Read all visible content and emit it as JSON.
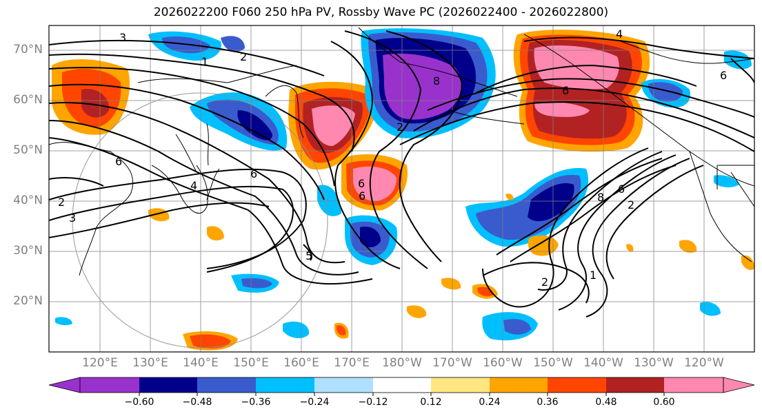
{
  "title": "2026022200 F060 250 hPa PV, Rossby Wave PC (2026022400 - 2026022800)",
  "lat_labels": [
    "70°N",
    "60°N",
    "50°N",
    "40°N",
    "30°N",
    "20°N"
  ],
  "lon_labels": [
    "120°E",
    "130°E",
    "140°E",
    "150°E",
    "160°E",
    "170°E",
    "180°W",
    "170°W",
    "160°W",
    "150°W",
    "140°W",
    "130°W",
    "120°W"
  ],
  "contour_labels": [
    "3",
    "1",
    "2",
    "2",
    "6",
    "4",
    "2",
    "3",
    "6",
    "5",
    "8",
    "6",
    "6",
    "6",
    "2",
    "1",
    "8",
    "6",
    "2",
    "4",
    "6"
  ],
  "colorbar": {
    "ticks": [
      "−0.60",
      "−0.48",
      "−0.36",
      "−0.24",
      "−0.12",
      "0.12",
      "0.24",
      "0.36",
      "0.48",
      "0.60"
    ],
    "colors": [
      "#9932CC",
      "#00008B",
      "#3A5BCD",
      "#00BFFF",
      "#B0E0FF",
      "#FFFFFF",
      "#FFE680",
      "#FFA500",
      "#FF4500",
      "#B22222",
      "#FF88B0"
    ]
  }
}
